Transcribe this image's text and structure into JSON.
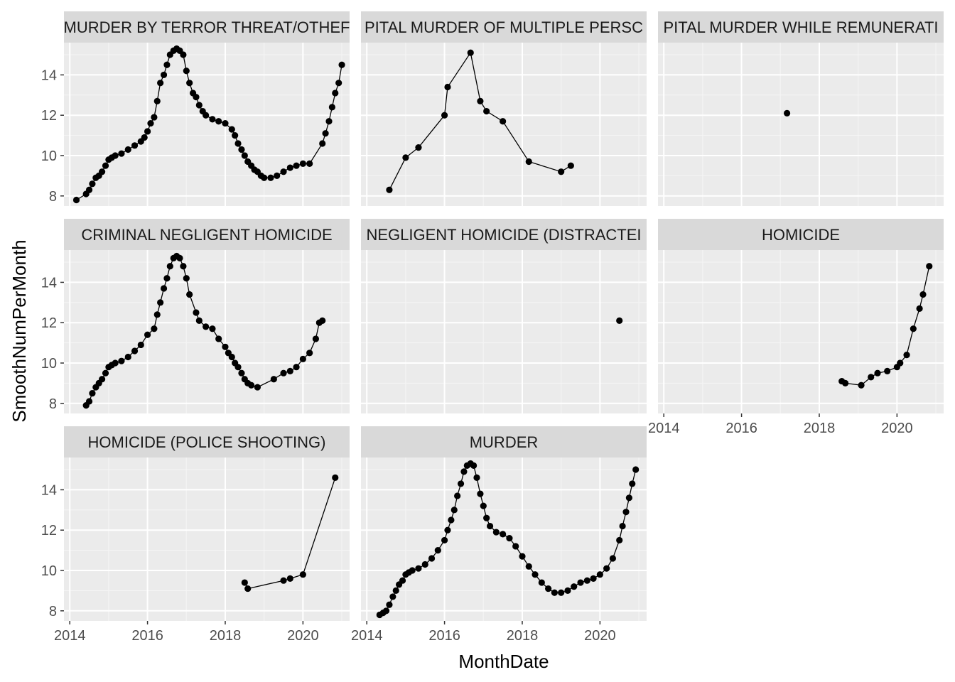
{
  "chart_data": {
    "type": "line",
    "xlabel": "MonthDate",
    "ylabel": "SmoothNumPerMonth",
    "xlim": [
      2013.85,
      2021.2
    ],
    "ylim": [
      7.5,
      15.6
    ],
    "x_ticks": [
      "2014",
      "2016",
      "2018",
      "2020"
    ],
    "y_ticks": [
      "8",
      "10",
      "12",
      "14"
    ],
    "grid": true,
    "markers": "points with connecting lines",
    "colors": {
      "panel_background": "#ebebeb",
      "strip_background": "#d9d9d9",
      "grid_major": "#ffffff",
      "grid_minor": "#f5f5f5",
      "series": "#000000"
    },
    "series": [
      {
        "name": "CAPITAL MURDER BY TERROR THREAT/OTHER FELONY",
        "strip_label": "MURDER BY TERROR THREAT/OTHEF",
        "points": [
          [
            2014.17,
            7.8
          ],
          [
            2014.42,
            8.1
          ],
          [
            2014.5,
            8.3
          ],
          [
            2014.58,
            8.6
          ],
          [
            2014.67,
            8.9
          ],
          [
            2014.75,
            9.0
          ],
          [
            2014.83,
            9.2
          ],
          [
            2014.92,
            9.5
          ],
          [
            2015.0,
            9.8
          ],
          [
            2015.08,
            9.9
          ],
          [
            2015.17,
            10.0
          ],
          [
            2015.33,
            10.1
          ],
          [
            2015.5,
            10.3
          ],
          [
            2015.67,
            10.5
          ],
          [
            2015.83,
            10.7
          ],
          [
            2015.92,
            10.9
          ],
          [
            2016.0,
            11.2
          ],
          [
            2016.08,
            11.6
          ],
          [
            2016.17,
            11.9
          ],
          [
            2016.25,
            12.7
          ],
          [
            2016.33,
            13.6
          ],
          [
            2016.42,
            14.0
          ],
          [
            2016.5,
            14.5
          ],
          [
            2016.58,
            15.0
          ],
          [
            2016.67,
            15.2
          ],
          [
            2016.75,
            15.3
          ],
          [
            2016.83,
            15.2
          ],
          [
            2016.92,
            15.0
          ],
          [
            2017.0,
            14.2
          ],
          [
            2017.08,
            13.6
          ],
          [
            2017.17,
            13.1
          ],
          [
            2017.25,
            12.9
          ],
          [
            2017.33,
            12.5
          ],
          [
            2017.42,
            12.2
          ],
          [
            2017.5,
            12.0
          ],
          [
            2017.67,
            11.8
          ],
          [
            2017.83,
            11.7
          ],
          [
            2018.0,
            11.6
          ],
          [
            2018.17,
            11.3
          ],
          [
            2018.25,
            11.0
          ],
          [
            2018.33,
            10.6
          ],
          [
            2018.42,
            10.3
          ],
          [
            2018.5,
            10.0
          ],
          [
            2018.58,
            9.7
          ],
          [
            2018.67,
            9.5
          ],
          [
            2018.75,
            9.3
          ],
          [
            2018.83,
            9.2
          ],
          [
            2018.92,
            9.0
          ],
          [
            2019.0,
            8.9
          ],
          [
            2019.17,
            8.9
          ],
          [
            2019.33,
            9.0
          ],
          [
            2019.5,
            9.2
          ],
          [
            2019.67,
            9.4
          ],
          [
            2019.83,
            9.5
          ],
          [
            2020.0,
            9.6
          ],
          [
            2020.17,
            9.6
          ],
          [
            2020.5,
            10.6
          ],
          [
            2020.58,
            11.1
          ],
          [
            2020.67,
            11.7
          ],
          [
            2020.75,
            12.4
          ],
          [
            2020.83,
            13.1
          ],
          [
            2020.92,
            13.6
          ],
          [
            2021.0,
            14.5
          ]
        ]
      },
      {
        "name": "CAPITAL MURDER OF MULTIPLE PERSONS",
        "strip_label": "PITAL MURDER OF MULTIPLE PERSC",
        "points": [
          [
            2014.58,
            8.3
          ],
          [
            2015.0,
            9.9
          ],
          [
            2015.33,
            10.4
          ],
          [
            2016.0,
            12.0
          ],
          [
            2016.08,
            13.4
          ],
          [
            2016.67,
            15.1
          ],
          [
            2016.92,
            12.7
          ],
          [
            2017.08,
            12.2
          ],
          [
            2017.5,
            11.7
          ],
          [
            2018.17,
            9.7
          ],
          [
            2019.0,
            9.2
          ],
          [
            2019.25,
            9.5
          ]
        ]
      },
      {
        "name": "CAPITAL MURDER WHILE REMUNERATION",
        "strip_label": "PITAL MURDER WHILE REMUNERATI",
        "points": [
          [
            2017.17,
            12.1
          ]
        ]
      },
      {
        "name": "CRIMINAL NEGLIGENT HOMICIDE",
        "strip_label": "CRIMINAL NEGLIGENT HOMICIDE",
        "points": [
          [
            2014.42,
            7.9
          ],
          [
            2014.5,
            8.1
          ],
          [
            2014.58,
            8.5
          ],
          [
            2014.67,
            8.8
          ],
          [
            2014.75,
            9.0
          ],
          [
            2014.83,
            9.2
          ],
          [
            2014.92,
            9.5
          ],
          [
            2015.0,
            9.8
          ],
          [
            2015.08,
            9.9
          ],
          [
            2015.17,
            10.0
          ],
          [
            2015.33,
            10.1
          ],
          [
            2015.5,
            10.3
          ],
          [
            2015.67,
            10.6
          ],
          [
            2015.83,
            10.9
          ],
          [
            2016.0,
            11.4
          ],
          [
            2016.17,
            11.7
          ],
          [
            2016.25,
            12.4
          ],
          [
            2016.33,
            13.0
          ],
          [
            2016.42,
            13.7
          ],
          [
            2016.5,
            14.2
          ],
          [
            2016.58,
            14.8
          ],
          [
            2016.67,
            15.2
          ],
          [
            2016.75,
            15.3
          ],
          [
            2016.83,
            15.2
          ],
          [
            2016.92,
            14.8
          ],
          [
            2017.0,
            14.2
          ],
          [
            2017.08,
            13.4
          ],
          [
            2017.25,
            12.5
          ],
          [
            2017.33,
            12.1
          ],
          [
            2017.5,
            11.8
          ],
          [
            2017.67,
            11.7
          ],
          [
            2017.83,
            11.2
          ],
          [
            2018.0,
            10.8
          ],
          [
            2018.08,
            10.5
          ],
          [
            2018.17,
            10.3
          ],
          [
            2018.25,
            10.0
          ],
          [
            2018.33,
            9.8
          ],
          [
            2018.42,
            9.5
          ],
          [
            2018.5,
            9.2
          ],
          [
            2018.58,
            9.0
          ],
          [
            2018.67,
            8.9
          ],
          [
            2018.83,
            8.8
          ],
          [
            2019.25,
            9.2
          ],
          [
            2019.5,
            9.5
          ],
          [
            2019.67,
            9.6
          ],
          [
            2019.83,
            9.8
          ],
          [
            2020.0,
            10.2
          ],
          [
            2020.17,
            10.5
          ],
          [
            2020.33,
            11.2
          ],
          [
            2020.42,
            12.0
          ],
          [
            2020.5,
            12.1
          ]
        ]
      },
      {
        "name": "CRIMINAL NEGLIGENT HOMICIDE (DISTRACTED DRIVING)",
        "strip_label": "NEGLIGENT HOMICIDE (DISTRACTEI",
        "points": [
          [
            2020.5,
            12.1
          ]
        ]
      },
      {
        "name": "HOMICIDE",
        "strip_label": "HOMICIDE",
        "points": [
          [
            2018.58,
            9.1
          ],
          [
            2018.67,
            9.0
          ],
          [
            2019.08,
            8.9
          ],
          [
            2019.33,
            9.3
          ],
          [
            2019.5,
            9.5
          ],
          [
            2019.75,
            9.6
          ],
          [
            2020.0,
            9.8
          ],
          [
            2020.08,
            10.0
          ],
          [
            2020.25,
            10.4
          ],
          [
            2020.42,
            11.7
          ],
          [
            2020.58,
            12.7
          ],
          [
            2020.67,
            13.4
          ],
          [
            2020.83,
            14.8
          ]
        ]
      },
      {
        "name": "HOMICIDE (POLICE SHOOTING)",
        "strip_label": "HOMICIDE (POLICE SHOOTING)",
        "points": [
          [
            2018.5,
            9.4
          ],
          [
            2018.58,
            9.1
          ],
          [
            2019.5,
            9.5
          ],
          [
            2019.67,
            9.6
          ],
          [
            2020.0,
            9.8
          ],
          [
            2020.83,
            14.6
          ]
        ]
      },
      {
        "name": "MURDER",
        "strip_label": "MURDER",
        "points": [
          [
            2014.33,
            7.8
          ],
          [
            2014.42,
            7.9
          ],
          [
            2014.5,
            8.0
          ],
          [
            2014.58,
            8.3
          ],
          [
            2014.67,
            8.7
          ],
          [
            2014.75,
            9.0
          ],
          [
            2014.83,
            9.3
          ],
          [
            2014.92,
            9.5
          ],
          [
            2015.0,
            9.8
          ],
          [
            2015.08,
            9.9
          ],
          [
            2015.17,
            10.0
          ],
          [
            2015.33,
            10.1
          ],
          [
            2015.5,
            10.3
          ],
          [
            2015.67,
            10.6
          ],
          [
            2015.83,
            11.0
          ],
          [
            2016.0,
            11.5
          ],
          [
            2016.08,
            12.0
          ],
          [
            2016.17,
            12.5
          ],
          [
            2016.25,
            13.0
          ],
          [
            2016.33,
            13.7
          ],
          [
            2016.42,
            14.3
          ],
          [
            2016.5,
            14.9
          ],
          [
            2016.58,
            15.2
          ],
          [
            2016.67,
            15.3
          ],
          [
            2016.75,
            15.2
          ],
          [
            2016.83,
            14.6
          ],
          [
            2016.92,
            13.8
          ],
          [
            2017.0,
            13.2
          ],
          [
            2017.08,
            12.6
          ],
          [
            2017.17,
            12.2
          ],
          [
            2017.33,
            11.9
          ],
          [
            2017.5,
            11.8
          ],
          [
            2017.67,
            11.6
          ],
          [
            2017.83,
            11.2
          ],
          [
            2018.0,
            10.7
          ],
          [
            2018.17,
            10.2
          ],
          [
            2018.33,
            9.8
          ],
          [
            2018.5,
            9.4
          ],
          [
            2018.67,
            9.1
          ],
          [
            2018.83,
            8.9
          ],
          [
            2019.0,
            8.9
          ],
          [
            2019.17,
            9.0
          ],
          [
            2019.33,
            9.2
          ],
          [
            2019.5,
            9.4
          ],
          [
            2019.67,
            9.5
          ],
          [
            2019.83,
            9.6
          ],
          [
            2020.0,
            9.8
          ],
          [
            2020.17,
            10.1
          ],
          [
            2020.33,
            10.6
          ],
          [
            2020.5,
            11.5
          ],
          [
            2020.58,
            12.2
          ],
          [
            2020.67,
            12.9
          ],
          [
            2020.75,
            13.6
          ],
          [
            2020.83,
            14.3
          ],
          [
            2020.92,
            15.0
          ]
        ]
      }
    ]
  }
}
